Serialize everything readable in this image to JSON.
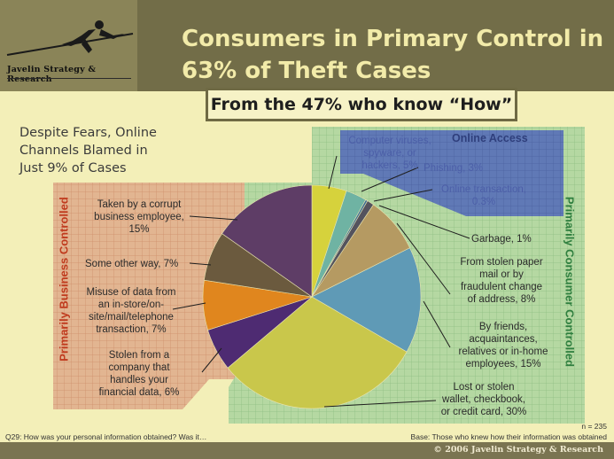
{
  "header": {
    "logo_text": "Javelin Strategy & Research",
    "title_line1": "Consumers in Primary Control in",
    "title_line2": "63% of Theft Cases",
    "subtitle": "From the 47% who know “How”"
  },
  "left_note": [
    "Despite Fears, Online",
    "Channels Blamed in",
    "Just 9% of Cases"
  ],
  "regions": {
    "business": "Primarily Business Controlled",
    "consumer": "Primarily Consumer Controlled",
    "online": "Online Access"
  },
  "labels": {
    "viruses": [
      "Computer viruses,",
      "spyware, or",
      "hackers, 5%"
    ],
    "phishing": [
      "Phishing, 3%"
    ],
    "online_txn": [
      "Online transaction,",
      "0.3%"
    ],
    "garbage": [
      "Garbage, 1%"
    ],
    "mail": [
      "From stolen paper",
      "mail or by",
      "fraudulent change",
      "of address, 8%"
    ],
    "friends": [
      "By friends,",
      "acquaintances,",
      "relatives or in-home",
      "employees, 15%"
    ],
    "wallet": [
      "Lost or stolen",
      "wallet, checkbook,",
      "or credit card, 30%"
    ],
    "company": [
      "Stolen from a",
      "company that",
      "handles your",
      "financial data, 6%"
    ],
    "misuse": [
      "Misuse of data from",
      "an in-store/on-",
      "site/mail/telephone",
      "transaction, 7%"
    ],
    "other": [
      "Some other way, 7%"
    ],
    "employee": [
      "Taken by a corrupt",
      "business employee,",
      "15%"
    ]
  },
  "footer": {
    "question": "Q29: How was your personal information obtained? Was it…",
    "n": "n = 235",
    "base": "Base: Those who knew how their information was obtained",
    "copyright": "© 2006 Javelin Strategy & Research"
  },
  "colors": {
    "background": "#f3efb8",
    "header": "#726d48",
    "business_region": "#e2b591",
    "consumer_region": "#b5d8a2",
    "online_region": "#5f78b6"
  },
  "chart_data": {
    "type": "pie",
    "start_angle_deg": 0,
    "direction": "clockwise",
    "slices": [
      {
        "label": "Computer viruses, spyware, or hackers",
        "value": 5,
        "color": "#d6d23c",
        "key": "viruses"
      },
      {
        "label": "Phishing",
        "value": 3,
        "color": "#6fb3a3",
        "key": "phishing"
      },
      {
        "label": "Online transaction",
        "value": 0.3,
        "color": "#3c6e96",
        "key": "online_txn"
      },
      {
        "label": "Garbage",
        "value": 1,
        "color": "#54535e",
        "key": "garbage"
      },
      {
        "label": "From stolen paper mail or by fraudulent change of address",
        "value": 8,
        "color": "#b59a62",
        "key": "mail"
      },
      {
        "label": "By friends, acquaintances, relatives or in-home employees",
        "value": 15,
        "color": "#5f9ab6",
        "key": "friends"
      },
      {
        "label": "Lost or stolen wallet, checkbook, or credit card",
        "value": 30,
        "color": "#c9c74b",
        "key": "wallet"
      },
      {
        "label": "Stolen from a company that handles your financial data",
        "value": 6,
        "color": "#4e2b72",
        "key": "company"
      },
      {
        "label": "Misuse of data from an in-store/on-site/mail/telephone transaction",
        "value": 7,
        "color": "#e0861e",
        "key": "misuse"
      },
      {
        "label": "Some other way",
        "value": 7,
        "color": "#6b5a3e",
        "key": "other"
      },
      {
        "label": "Taken by a corrupt business employee",
        "value": 15,
        "color": "#5e3d66",
        "key": "employee"
      }
    ]
  }
}
